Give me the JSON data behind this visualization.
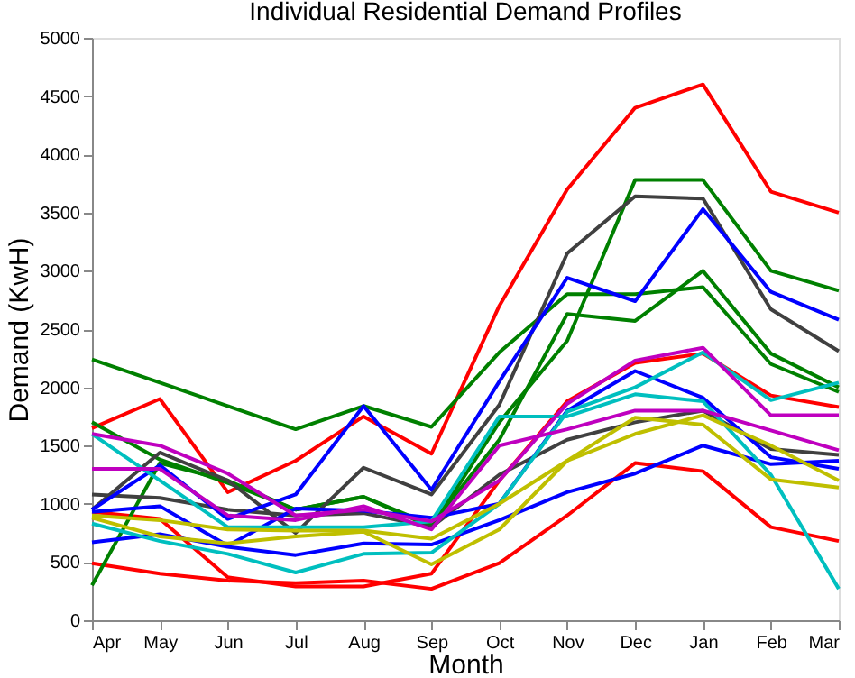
{
  "chart_data": {
    "type": "line",
    "title": "Individual Residential Demand Profiles",
    "xlabel": "Month",
    "ylabel": "Demand (KwH)",
    "categories": [
      "Apr",
      "May",
      "Jun",
      "Jul",
      "Aug",
      "Sep",
      "Oct",
      "Nov",
      "Dec",
      "Jan",
      "Feb",
      "Mar"
    ],
    "ylim": [
      0,
      5000
    ],
    "yticks": [
      0,
      500,
      1000,
      1500,
      2000,
      2500,
      3000,
      3500,
      4000,
      4500,
      5000
    ],
    "grid": false,
    "legend": false,
    "marker": "none",
    "line_style": "solid",
    "series": [
      {
        "color": "#ff0000",
        "values": [
          1650,
          1900,
          1100,
          1370,
          1750,
          1430,
          2700,
          3700,
          4400,
          4600,
          3680,
          3500
        ]
      },
      {
        "color": "#ff0000",
        "values": [
          490,
          400,
          340,
          320,
          340,
          270,
          490,
          900,
          1350,
          1280,
          800,
          680
        ]
      },
      {
        "color": "#ff0000",
        "values": [
          930,
          870,
          370,
          290,
          290,
          400,
          1200,
          1880,
          2210,
          2290,
          1930,
          1830
        ]
      },
      {
        "color": "#008000",
        "values": [
          2240,
          2040,
          1840,
          1640,
          1840,
          1660,
          2300,
          2800,
          2800,
          2860,
          2200,
          1960
        ]
      },
      {
        "color": "#008000",
        "values": [
          1700,
          1380,
          1180,
          950,
          1060,
          820,
          1550,
          2630,
          2570,
          3000,
          2290,
          2000
        ]
      },
      {
        "color": "#008000",
        "values": [
          300,
          1350,
          1200,
          950,
          1060,
          800,
          1700,
          2400,
          3780,
          3780,
          3000,
          2830
        ]
      },
      {
        "color": "#404040",
        "values": [
          1080,
          1050,
          950,
          900,
          920,
          800,
          1250,
          1550,
          1700,
          1800,
          1470,
          1420
        ]
      },
      {
        "color": "#404040",
        "values": [
          950,
          1440,
          1200,
          750,
          1310,
          1080,
          1850,
          3150,
          3640,
          3620,
          2670,
          2310
        ]
      },
      {
        "color": "#0000ff",
        "values": [
          950,
          1330,
          870,
          1080,
          1840,
          1120,
          2050,
          2940,
          2740,
          3530,
          2820,
          2580
        ]
      },
      {
        "color": "#0000ff",
        "values": [
          930,
          980,
          640,
          960,
          940,
          880,
          1000,
          1800,
          2140,
          1910,
          1400,
          1300
        ]
      },
      {
        "color": "#0000ff",
        "values": [
          670,
          740,
          630,
          560,
          660,
          650,
          860,
          1100,
          1260,
          1500,
          1340,
          1370
        ]
      },
      {
        "color": "#00bfbf",
        "values": [
          1600,
          1200,
          800,
          800,
          800,
          850,
          1750,
          1750,
          1940,
          1880,
          1250,
          270
        ]
      },
      {
        "color": "#00bfbf",
        "values": [
          830,
          680,
          570,
          410,
          570,
          580,
          1000,
          1790,
          2000,
          2300,
          1890,
          2040
        ]
      },
      {
        "color": "#bf00bf",
        "values": [
          1600,
          1500,
          1260,
          900,
          950,
          850,
          1200,
          1860,
          2230,
          2340,
          1760,
          1760
        ]
      },
      {
        "color": "#bf00bf",
        "values": [
          1300,
          1300,
          900,
          860,
          980,
          780,
          1500,
          1640,
          1800,
          1800,
          1630,
          1460
        ]
      },
      {
        "color": "#bfbf00",
        "values": [
          900,
          860,
          780,
          770,
          770,
          700,
          1000,
          1370,
          1600,
          1760,
          1500,
          1200
        ]
      },
      {
        "color": "#bfbf00",
        "values": [
          880,
          720,
          660,
          720,
          760,
          480,
          780,
          1370,
          1740,
          1680,
          1210,
          1140
        ]
      }
    ]
  }
}
